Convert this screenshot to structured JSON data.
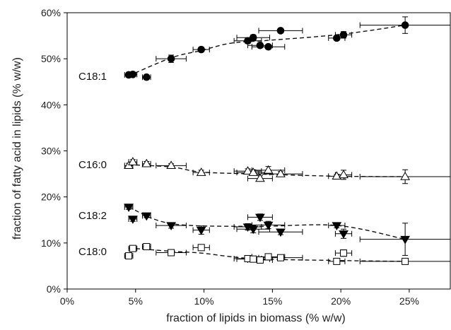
{
  "chart_data": {
    "type": "scatter",
    "xlabel": "fraction of lipids in biomass (% w/w)",
    "ylabel": "fraction of fatty acid in lipids (% w/w)",
    "xlim": [
      0,
      28
    ],
    "ylim": [
      0,
      60
    ],
    "x_ticks": [
      "0%",
      "5%",
      "10%",
      "15%",
      "20%",
      "25%"
    ],
    "y_ticks": [
      "0%",
      "10%",
      "20%",
      "30%",
      "40%",
      "50%",
      "60%"
    ],
    "grid": false,
    "series": [
      {
        "name": "C18:1",
        "marker": "filled-circle",
        "points": [
          {
            "x": 4.5,
            "y": 46.5,
            "xerr": 0.3,
            "yerr": 0.5
          },
          {
            "x": 4.8,
            "y": 46.6,
            "xerr": 0.3,
            "yerr": 0.5
          },
          {
            "x": 5.8,
            "y": 46.0,
            "xerr": 0.3,
            "yerr": 0.4
          },
          {
            "x": 7.6,
            "y": 50.0,
            "xerr": 1.1,
            "yerr": 0.8
          },
          {
            "x": 9.8,
            "y": 52.0,
            "xerr": 0.6,
            "yerr": 0.5
          },
          {
            "x": 13.2,
            "y": 53.9,
            "xerr": 1.0,
            "yerr": 0.6
          },
          {
            "x": 13.6,
            "y": 54.6,
            "xerr": 1.2,
            "yerr": 0.6
          },
          {
            "x": 14.1,
            "y": 52.9,
            "xerr": 0.9,
            "yerr": 0.5
          },
          {
            "x": 14.7,
            "y": 52.6,
            "xerr": 1.2,
            "yerr": 0.5
          },
          {
            "x": 15.6,
            "y": 56.1,
            "xerr": 1.6,
            "yerr": 0.5
          },
          {
            "x": 19.7,
            "y": 54.5,
            "xerr": 0.6,
            "yerr": 0.5
          },
          {
            "x": 20.2,
            "y": 55.2,
            "xerr": 0.6,
            "yerr": 0.7
          },
          {
            "x": 24.7,
            "y": 57.3,
            "xerr": 3.3,
            "yerr": 1.8
          }
        ]
      },
      {
        "name": "C16:0",
        "marker": "open-triangle-up",
        "points": [
          {
            "x": 4.5,
            "y": 26.8,
            "xerr": 0.3,
            "yerr": 0.5
          },
          {
            "x": 4.8,
            "y": 27.6,
            "xerr": 0.3,
            "yerr": 0.5
          },
          {
            "x": 5.8,
            "y": 27.2,
            "xerr": 0.3,
            "yerr": 0.5
          },
          {
            "x": 7.6,
            "y": 26.8,
            "xerr": 1.1,
            "yerr": 0.4
          },
          {
            "x": 9.8,
            "y": 25.3,
            "xerr": 0.6,
            "yerr": 0.5
          },
          {
            "x": 13.2,
            "y": 25.6,
            "xerr": 1.0,
            "yerr": 0.5
          },
          {
            "x": 13.6,
            "y": 25.3,
            "xerr": 1.2,
            "yerr": 0.6
          },
          {
            "x": 14.1,
            "y": 24.0,
            "xerr": 0.9,
            "yerr": 0.6
          },
          {
            "x": 14.7,
            "y": 25.8,
            "xerr": 1.2,
            "yerr": 0.8
          },
          {
            "x": 15.6,
            "y": 25.0,
            "xerr": 1.6,
            "yerr": 0.5
          },
          {
            "x": 19.7,
            "y": 24.5,
            "xerr": 0.6,
            "yerr": 0.4
          },
          {
            "x": 20.2,
            "y": 24.8,
            "xerr": 0.6,
            "yerr": 1.0
          },
          {
            "x": 24.7,
            "y": 24.4,
            "xerr": 3.3,
            "yerr": 1.5
          }
        ]
      },
      {
        "name": "C18:2",
        "marker": "filled-triangle-down",
        "points": [
          {
            "x": 4.5,
            "y": 17.8,
            "xerr": 0.3,
            "yerr": 0.5
          },
          {
            "x": 4.8,
            "y": 15.2,
            "xerr": 0.3,
            "yerr": 0.5
          },
          {
            "x": 5.8,
            "y": 15.9,
            "xerr": 0.3,
            "yerr": 0.4
          },
          {
            "x": 7.6,
            "y": 13.8,
            "xerr": 1.1,
            "yerr": 0.6
          },
          {
            "x": 9.8,
            "y": 12.8,
            "xerr": 0.6,
            "yerr": 0.9
          },
          {
            "x": 13.2,
            "y": 13.5,
            "xerr": 1.0,
            "yerr": 0.7
          },
          {
            "x": 13.6,
            "y": 13.0,
            "xerr": 1.2,
            "yerr": 0.8
          },
          {
            "x": 14.1,
            "y": 15.6,
            "xerr": 0.9,
            "yerr": 0.7
          },
          {
            "x": 14.7,
            "y": 13.9,
            "xerr": 1.2,
            "yerr": 0.8
          },
          {
            "x": 15.6,
            "y": 12.4,
            "xerr": 1.6,
            "yerr": 0.6
          },
          {
            "x": 19.7,
            "y": 13.8,
            "xerr": 0.6,
            "yerr": 0.5
          },
          {
            "x": 20.2,
            "y": 12.0,
            "xerr": 0.6,
            "yerr": 1.0
          },
          {
            "x": 24.7,
            "y": 10.8,
            "xerr": 3.3,
            "yerr": 3.5
          }
        ]
      },
      {
        "name": "C18:0",
        "marker": "open-square",
        "points": [
          {
            "x": 4.5,
            "y": 7.2,
            "xerr": 0.3,
            "yerr": 0.5
          },
          {
            "x": 4.8,
            "y": 8.8,
            "xerr": 0.3,
            "yerr": 0.5
          },
          {
            "x": 5.8,
            "y": 9.2,
            "xerr": 0.3,
            "yerr": 0.5
          },
          {
            "x": 7.6,
            "y": 7.9,
            "xerr": 1.1,
            "yerr": 0.4
          },
          {
            "x": 9.8,
            "y": 9.0,
            "xerr": 0.6,
            "yerr": 0.5
          },
          {
            "x": 13.2,
            "y": 6.6,
            "xerr": 1.0,
            "yerr": 0.5
          },
          {
            "x": 13.6,
            "y": 6.5,
            "xerr": 1.2,
            "yerr": 0.5
          },
          {
            "x": 14.1,
            "y": 6.3,
            "xerr": 0.9,
            "yerr": 0.5
          },
          {
            "x": 14.7,
            "y": 7.0,
            "xerr": 1.2,
            "yerr": 0.5
          },
          {
            "x": 15.6,
            "y": 6.8,
            "xerr": 1.6,
            "yerr": 0.5
          },
          {
            "x": 19.7,
            "y": 6.0,
            "xerr": 0.6,
            "yerr": 0.5
          },
          {
            "x": 20.2,
            "y": 7.8,
            "xerr": 0.6,
            "yerr": 0.7
          },
          {
            "x": 24.7,
            "y": 6.0,
            "xerr": 3.3,
            "yerr": 0.4
          }
        ]
      }
    ],
    "trend_lines": [
      {
        "series": "C18:1",
        "x": [
          4.5,
          7.6,
          9.8,
          12.0,
          14.7,
          20.0,
          24.7
        ],
        "y": [
          46.3,
          50.2,
          51.8,
          53.4,
          54.0,
          55.3,
          57.3
        ]
      },
      {
        "series": "C16:0",
        "x": [
          4.5,
          7.6,
          9.8,
          13.6,
          19.7,
          24.7
        ],
        "y": [
          27.0,
          26.5,
          25.4,
          25.0,
          24.5,
          24.4
        ]
      },
      {
        "series": "C18:2",
        "x": [
          4.5,
          7.6,
          13.6,
          19.7,
          24.7
        ],
        "y": [
          17.8,
          14.2,
          13.6,
          13.8,
          10.8
        ]
      },
      {
        "series": "C18:0",
        "x": [
          4.5,
          7.6,
          9.8,
          13.6,
          19.7,
          24.7
        ],
        "y": [
          8.9,
          8.2,
          7.8,
          6.6,
          6.2,
          6.0
        ]
      }
    ]
  }
}
